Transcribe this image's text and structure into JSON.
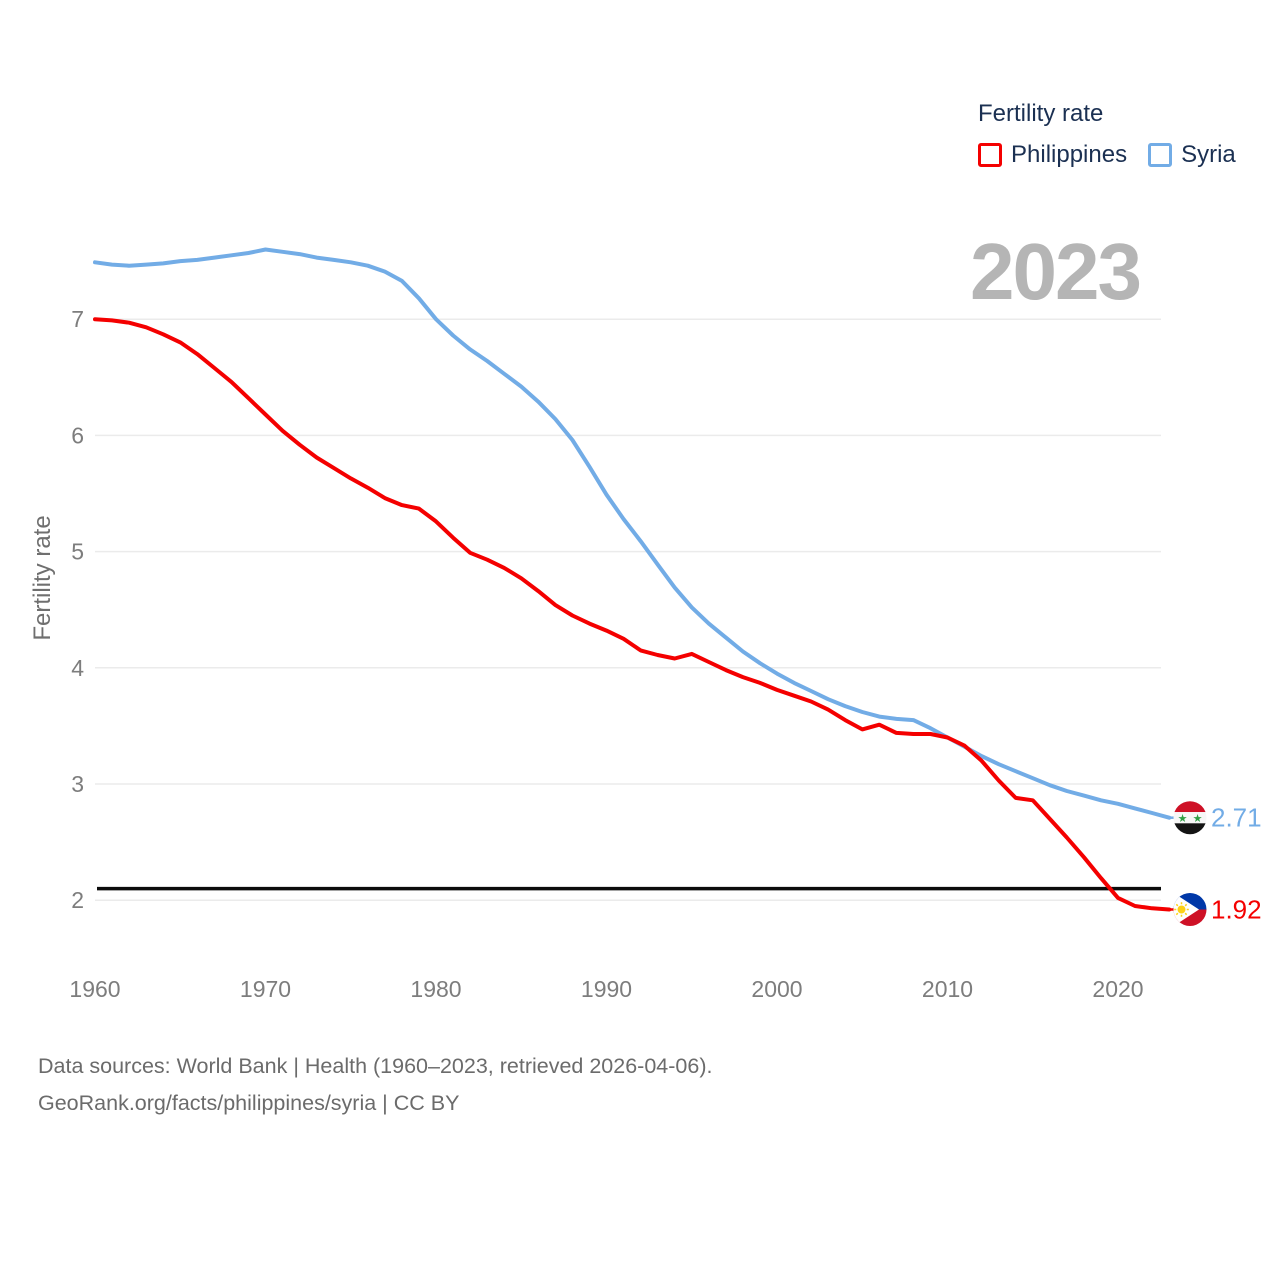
{
  "canvas": {
    "background": "#ffffff"
  },
  "legend": {
    "title": "Fertility rate",
    "text_color": "#1b3052",
    "items": [
      {
        "label": "Philippines",
        "color": "#f40000"
      },
      {
        "label": "Syria",
        "color": "#72ace6"
      }
    ]
  },
  "watermark": {
    "text": "2023",
    "color": "#b5b5b5"
  },
  "footer": {
    "line1": "Data sources: World Bank | Health (1960–2023, retrieved 2026-04-06).",
    "line2": "GeoRank.org/facts/philippines/syria | CC BY",
    "color": "#6b6b6b"
  },
  "chart_data": {
    "type": "line",
    "title": "Fertility rate",
    "ylabel": "Fertility rate",
    "xlabel": "",
    "grid": "horizontal",
    "legend_position": "top-right",
    "x_range": [
      1960,
      2023
    ],
    "ylim": [
      1.75,
      7.7
    ],
    "x_ticks": [
      1960,
      1970,
      1980,
      1990,
      2000,
      2010,
      2020
    ],
    "y_ticks": [
      2,
      3,
      4,
      5,
      6,
      7
    ],
    "tick_color": "#7d7d7d",
    "gridline_color": "#ebebeb",
    "axis_title_color": "#6f6f6f",
    "replacement_line": {
      "value": 2.1,
      "color": "#0c0c0c"
    },
    "years": [
      1960,
      1961,
      1962,
      1963,
      1964,
      1965,
      1966,
      1967,
      1968,
      1969,
      1970,
      1971,
      1972,
      1973,
      1974,
      1975,
      1976,
      1977,
      1978,
      1979,
      1980,
      1981,
      1982,
      1983,
      1984,
      1985,
      1986,
      1987,
      1988,
      1989,
      1990,
      1991,
      1992,
      1993,
      1994,
      1995,
      1996,
      1997,
      1998,
      1999,
      2000,
      2001,
      2002,
      2003,
      2004,
      2005,
      2006,
      2007,
      2008,
      2009,
      2010,
      2011,
      2012,
      2013,
      2014,
      2015,
      2016,
      2017,
      2018,
      2019,
      2020,
      2021,
      2022,
      2023
    ],
    "series": [
      {
        "name": "Philippines",
        "color": "#f40000",
        "flag": "philippines",
        "end_label": "1.92",
        "end_value": 1.92,
        "values": [
          7.0,
          6.99,
          6.97,
          6.93,
          6.87,
          6.8,
          6.7,
          6.58,
          6.46,
          6.32,
          6.18,
          6.04,
          5.92,
          5.81,
          5.72,
          5.63,
          5.55,
          5.46,
          5.4,
          5.37,
          5.26,
          5.12,
          4.99,
          4.93,
          4.86,
          4.77,
          4.66,
          4.54,
          4.45,
          4.38,
          4.32,
          4.25,
          4.15,
          4.11,
          4.08,
          4.12,
          4.05,
          3.98,
          3.92,
          3.87,
          3.81,
          3.76,
          3.71,
          3.64,
          3.55,
          3.47,
          3.51,
          3.44,
          3.43,
          3.43,
          3.4,
          3.33,
          3.2,
          3.03,
          2.88,
          2.86,
          2.7,
          2.54,
          2.37,
          2.19,
          2.02,
          1.95,
          1.93,
          1.92
        ]
      },
      {
        "name": "Syria",
        "color": "#72ace6",
        "flag": "syria",
        "end_label": "2.71",
        "end_value": 2.71,
        "values": [
          7.49,
          7.47,
          7.46,
          7.47,
          7.48,
          7.5,
          7.51,
          7.53,
          7.55,
          7.57,
          7.6,
          7.58,
          7.56,
          7.53,
          7.51,
          7.49,
          7.46,
          7.41,
          7.33,
          7.18,
          7.0,
          6.86,
          6.74,
          6.64,
          6.53,
          6.42,
          6.29,
          6.14,
          5.96,
          5.73,
          5.49,
          5.28,
          5.09,
          4.89,
          4.69,
          4.52,
          4.38,
          4.26,
          4.14,
          4.04,
          3.95,
          3.87,
          3.8,
          3.73,
          3.67,
          3.62,
          3.58,
          3.56,
          3.55,
          3.48,
          3.4,
          3.32,
          3.24,
          3.17,
          3.11,
          3.05,
          2.99,
          2.94,
          2.9,
          2.86,
          2.83,
          2.79,
          2.75,
          2.71
        ]
      }
    ],
    "flag_colors": {
      "syria": {
        "red": "#ce1126",
        "white": "#f7f7f7",
        "black": "#141414",
        "green": "#2f9e44"
      },
      "philippines": {
        "blue": "#0038a8",
        "red": "#ce1126",
        "white": "#ffffff",
        "yellow": "#fcd116"
      }
    }
  }
}
